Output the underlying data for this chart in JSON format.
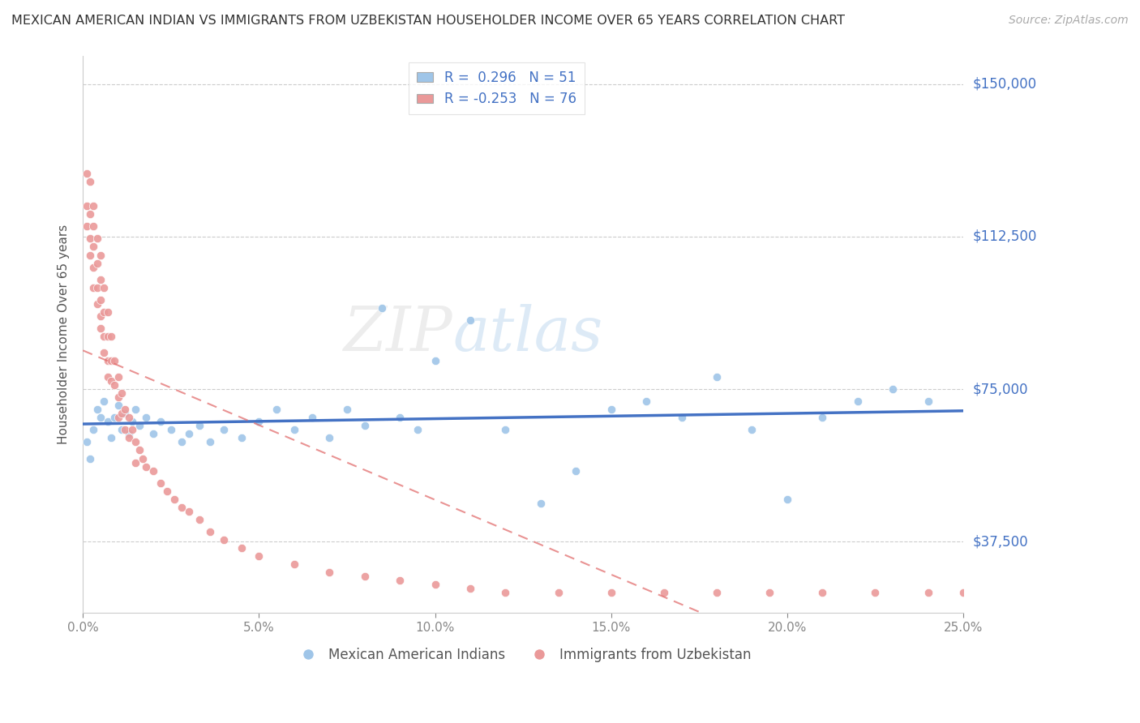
{
  "title": "MEXICAN AMERICAN INDIAN VS IMMIGRANTS FROM UZBEKISTAN HOUSEHOLDER INCOME OVER 65 YEARS CORRELATION CHART",
  "source": "Source: ZipAtlas.com",
  "ylabel": "Householder Income Over 65 years",
  "xlim": [
    0.0,
    0.25
  ],
  "ylim": [
    20000,
    157000
  ],
  "xticks": [
    0.0,
    0.05,
    0.1,
    0.15,
    0.2,
    0.25
  ],
  "xticklabels": [
    "0.0%",
    "5.0%",
    "10.0%",
    "15.0%",
    "20.0%",
    "25.0%"
  ],
  "ytick_vals": [
    37500,
    75000,
    112500,
    150000
  ],
  "yticklabels": [
    "$37,500",
    "$75,000",
    "$112,500",
    "$150,000"
  ],
  "R_blue": 0.296,
  "N_blue": 51,
  "R_pink": -0.253,
  "N_pink": 76,
  "color_blue": "#9fc5e8",
  "color_pink": "#ea9999",
  "color_blue_line": "#4472c4",
  "color_pink_line": "#e06666",
  "legend_label_blue": "Mexican American Indians",
  "legend_label_pink": "Immigrants from Uzbekistan",
  "blue_x": [
    0.001,
    0.002,
    0.003,
    0.004,
    0.005,
    0.006,
    0.007,
    0.008,
    0.009,
    0.01,
    0.011,
    0.012,
    0.013,
    0.014,
    0.015,
    0.016,
    0.018,
    0.02,
    0.022,
    0.025,
    0.028,
    0.03,
    0.033,
    0.036,
    0.04,
    0.045,
    0.05,
    0.055,
    0.06,
    0.065,
    0.07,
    0.075,
    0.08,
    0.085,
    0.09,
    0.095,
    0.1,
    0.11,
    0.12,
    0.13,
    0.14,
    0.15,
    0.16,
    0.17,
    0.18,
    0.19,
    0.2,
    0.21,
    0.22,
    0.23,
    0.24
  ],
  "blue_y": [
    62000,
    58000,
    65000,
    70000,
    68000,
    72000,
    67000,
    63000,
    68000,
    71000,
    65000,
    69000,
    64000,
    67000,
    70000,
    66000,
    68000,
    64000,
    67000,
    65000,
    62000,
    64000,
    66000,
    62000,
    65000,
    63000,
    67000,
    70000,
    65000,
    68000,
    63000,
    70000,
    66000,
    95000,
    68000,
    65000,
    82000,
    92000,
    65000,
    47000,
    55000,
    70000,
    72000,
    68000,
    78000,
    65000,
    48000,
    68000,
    72000,
    75000,
    72000
  ],
  "pink_x": [
    0.001,
    0.001,
    0.001,
    0.002,
    0.002,
    0.002,
    0.002,
    0.003,
    0.003,
    0.003,
    0.003,
    0.003,
    0.004,
    0.004,
    0.004,
    0.004,
    0.005,
    0.005,
    0.005,
    0.005,
    0.005,
    0.006,
    0.006,
    0.006,
    0.006,
    0.007,
    0.007,
    0.007,
    0.007,
    0.008,
    0.008,
    0.008,
    0.009,
    0.009,
    0.01,
    0.01,
    0.01,
    0.011,
    0.011,
    0.012,
    0.012,
    0.013,
    0.013,
    0.014,
    0.015,
    0.015,
    0.016,
    0.017,
    0.018,
    0.02,
    0.022,
    0.024,
    0.026,
    0.028,
    0.03,
    0.033,
    0.036,
    0.04,
    0.045,
    0.05,
    0.06,
    0.07,
    0.08,
    0.09,
    0.1,
    0.11,
    0.12,
    0.135,
    0.15,
    0.165,
    0.18,
    0.195,
    0.21,
    0.225,
    0.24,
    0.25
  ],
  "pink_y": [
    128000,
    120000,
    115000,
    126000,
    118000,
    112000,
    108000,
    120000,
    115000,
    110000,
    105000,
    100000,
    112000,
    106000,
    100000,
    96000,
    108000,
    102000,
    97000,
    93000,
    90000,
    100000,
    94000,
    88000,
    84000,
    94000,
    88000,
    82000,
    78000,
    88000,
    82000,
    77000,
    82000,
    76000,
    78000,
    73000,
    68000,
    74000,
    69000,
    70000,
    65000,
    68000,
    63000,
    65000,
    62000,
    57000,
    60000,
    58000,
    56000,
    55000,
    52000,
    50000,
    48000,
    46000,
    45000,
    43000,
    40000,
    38000,
    36000,
    34000,
    32000,
    30000,
    29000,
    28000,
    27000,
    26000,
    25000,
    25000,
    25000,
    25000,
    25000,
    25000,
    25000,
    25000,
    25000,
    25000
  ]
}
